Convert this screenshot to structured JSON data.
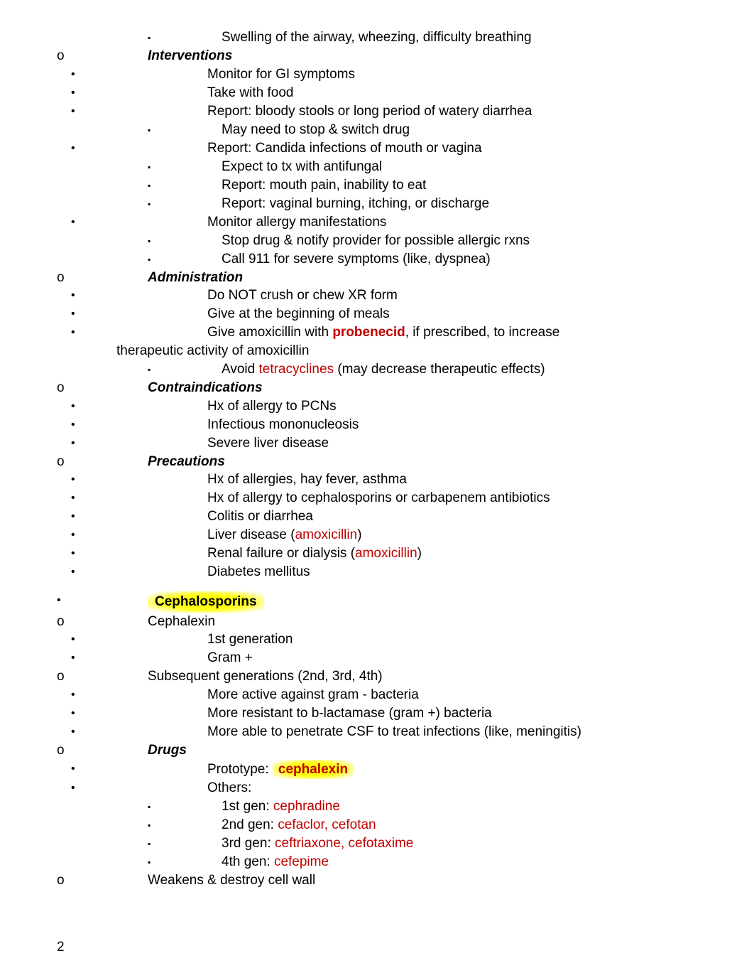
{
  "meta": {
    "page_number": "2"
  },
  "colors": {
    "text": "#000000",
    "red": "#c00000",
    "highlight": "#ffff00",
    "bg": "#ffffff"
  },
  "lines": [
    {
      "level": "sq",
      "text": "Swelling of the airway, wheezing, difficulty breathing"
    },
    {
      "level": "o",
      "style": "bi",
      "text": "Interventions"
    },
    {
      "level": "dot",
      "text": "Monitor for GI symptoms"
    },
    {
      "level": "dot",
      "text": "Take with food"
    },
    {
      "level": "dot",
      "text": "Report: bloody stools or long period of watery diarrhea"
    },
    {
      "level": "sq",
      "text": "May need to stop & switch drug"
    },
    {
      "level": "dot",
      "text": "Report: Candida infections of mouth or vagina"
    },
    {
      "level": "sq",
      "text": "Expect to tx with antifungal"
    },
    {
      "level": "sq",
      "text": "Report: mouth pain, inability to eat"
    },
    {
      "level": "sq",
      "text": "Report: vaginal burning, itching, or discharge"
    },
    {
      "level": "dot",
      "text": "Monitor allergy manifestations"
    },
    {
      "level": "sq",
      "text": "Stop drug & notify provider for possible allergic rxns"
    },
    {
      "level": "sq",
      "text": "Call 911 for severe symptoms (like, dyspnea)"
    },
    {
      "level": "o",
      "style": "bi",
      "text": "Administration"
    },
    {
      "level": "dot",
      "text": "Do NOT crush or chew XR form"
    },
    {
      "level": "dot",
      "text": "Give at the beginning of meals"
    },
    {
      "level": "dot",
      "parts": [
        {
          "t": "Give amoxicillin with "
        },
        {
          "t": "probenecid",
          "cls": "red-bold"
        },
        {
          "t": ", if prescribed, to increase therapeutic activity of amoxicillin"
        }
      ],
      "wrap": true
    },
    {
      "level": "sq",
      "parts": [
        {
          "t": "Avoid "
        },
        {
          "t": "tetracyclines",
          "cls": "red"
        },
        {
          "t": " (may decrease therapeutic effects)"
        }
      ]
    },
    {
      "level": "o",
      "style": "bi",
      "text": "Contraindications"
    },
    {
      "level": "dot",
      "text": "Hx of allergy to PCNs"
    },
    {
      "level": "dot",
      "text": "Infectious mononucleosis"
    },
    {
      "level": "dot",
      "text": "Severe liver disease"
    },
    {
      "level": "o",
      "style": "bi",
      "text": "Precautions"
    },
    {
      "level": "dot",
      "text": "Hx of allergies, hay fever, asthma"
    },
    {
      "level": "dot",
      "text": "Hx of allergy to cephalosporins or carbapenem antibiotics"
    },
    {
      "level": "dot",
      "text": "Colitis or diarrhea"
    },
    {
      "level": "dot",
      "parts": [
        {
          "t": "Liver disease ("
        },
        {
          "t": "amoxicillin",
          "cls": "red"
        },
        {
          "t": ")"
        }
      ]
    },
    {
      "level": "dot",
      "parts": [
        {
          "t": "Renal failure or dialysis ("
        },
        {
          "t": "amoxicillin",
          "cls": "red"
        },
        {
          "t": ")"
        }
      ]
    },
    {
      "level": "dot",
      "text": "Diabetes mellitus"
    },
    {
      "level": "gap"
    },
    {
      "level": "top-dot",
      "parts": [
        {
          "t": "Cephalosporins",
          "cls": "hl-yellow",
          "bold": true
        }
      ]
    },
    {
      "level": "o",
      "text": "Cephalexin"
    },
    {
      "level": "dot",
      "text": "1st generation"
    },
    {
      "level": "dot",
      "text": "Gram +"
    },
    {
      "level": "o",
      "text": "Subsequent generations (2nd, 3rd, 4th)"
    },
    {
      "level": "dot",
      "text": "More active against gram - bacteria"
    },
    {
      "level": "dot",
      "text": "More resistant to b-lactamase (gram +) bacteria"
    },
    {
      "level": "dot",
      "text": "More able to penetrate CSF to treat infections (like, meningitis)"
    },
    {
      "level": "o",
      "style": "bi",
      "text": "Drugs"
    },
    {
      "level": "dot",
      "parts": [
        {
          "t": "Prototype: "
        },
        {
          "t": "cephalexin",
          "cls": "hl-yellow-bold red-bold"
        }
      ]
    },
    {
      "level": "dot",
      "text": "Others:"
    },
    {
      "level": "sq",
      "parts": [
        {
          "t": "1st gen: "
        },
        {
          "t": "cephradine",
          "cls": "red"
        }
      ]
    },
    {
      "level": "sq",
      "parts": [
        {
          "t": "2nd gen: "
        },
        {
          "t": "cefaclor, cefotan",
          "cls": "red"
        }
      ]
    },
    {
      "level": "sq",
      "parts": [
        {
          "t": "3rd gen: "
        },
        {
          "t": "ceftriaxone, cefotaxime",
          "cls": "red"
        }
      ]
    },
    {
      "level": "sq",
      "parts": [
        {
          "t": "4th gen: "
        },
        {
          "t": "cefepime",
          "cls": "red"
        }
      ]
    },
    {
      "level": "o",
      "text": "Weakens & destroy cell wall"
    }
  ]
}
